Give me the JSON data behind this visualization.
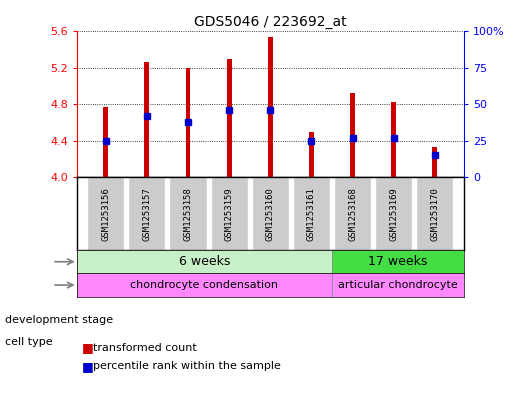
{
  "title": "GDS5046 / 223692_at",
  "samples": [
    "GSM1253156",
    "GSM1253157",
    "GSM1253158",
    "GSM1253159",
    "GSM1253160",
    "GSM1253161",
    "GSM1253168",
    "GSM1253169",
    "GSM1253170"
  ],
  "transformed_count": [
    4.77,
    5.27,
    5.2,
    5.3,
    5.54,
    4.5,
    4.92,
    4.82,
    4.33
  ],
  "percentile_rank": [
    25,
    42,
    38,
    46,
    46,
    25,
    27,
    27,
    15
  ],
  "ylim": [
    4.0,
    5.6
  ],
  "y_ticks": [
    4.0,
    4.4,
    4.8,
    5.2,
    5.6
  ],
  "right_yticks": [
    0,
    25,
    50,
    75,
    100
  ],
  "bar_color": "#cc0000",
  "dot_color": "#0000cc",
  "group1_label": "6 weeks",
  "group2_label": "17 weeks",
  "group1_count": 6,
  "group2_count": 3,
  "cell_type1": "chondrocyte condensation",
  "cell_type2": "articular chondrocyte",
  "dev_stage_label": "development stage",
  "cell_type_label": "cell type",
  "legend1": "transformed count",
  "legend2": "percentile rank within the sample",
  "light_green": "#c8f0c8",
  "bright_green": "#44dd44",
  "magenta": "#ff88ff",
  "gray_bg": "#cccccc",
  "bar_width": 0.12
}
